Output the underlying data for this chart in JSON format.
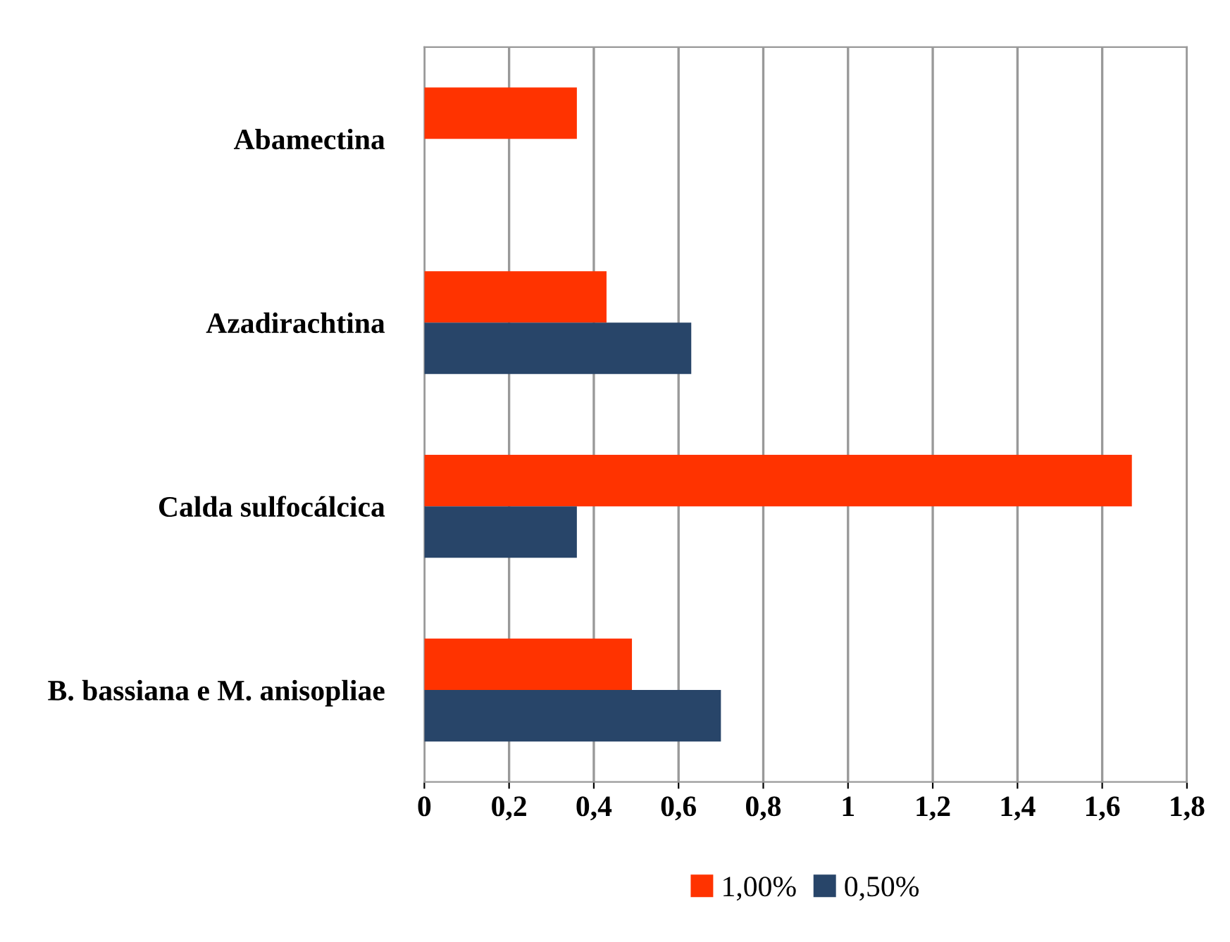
{
  "chart_data": {
    "type": "bar",
    "orientation": "horizontal",
    "categories": [
      "Abamectina",
      "Azadirachtina",
      "Calda sulfocálcica",
      "B. bassiana e M. anisopliae"
    ],
    "series": [
      {
        "name": "1,00%",
        "color": "#ff3300",
        "values": [
          0.36,
          0.43,
          1.67,
          0.49
        ]
      },
      {
        "name": "0,50%",
        "color": "#284569",
        "values": [
          null,
          0.63,
          0.36,
          0.7
        ]
      }
    ],
    "xlim": [
      0,
      1.8
    ],
    "xticks": [
      0,
      {
        "value": 0.2,
        "label": "0,2"
      },
      {
        "value": 0.4,
        "label": "0,4"
      },
      {
        "value": 0.6,
        "label": "0,6"
      },
      {
        "value": 0.8,
        "label": "0,8"
      },
      1,
      {
        "value": 1.2,
        "label": "1,2"
      },
      {
        "value": 1.4,
        "label": "1,4"
      },
      {
        "value": 1.6,
        "label": "1,6"
      },
      {
        "value": 1.8,
        "label": "1,8"
      }
    ],
    "grid": "x",
    "legend": "bottom"
  }
}
